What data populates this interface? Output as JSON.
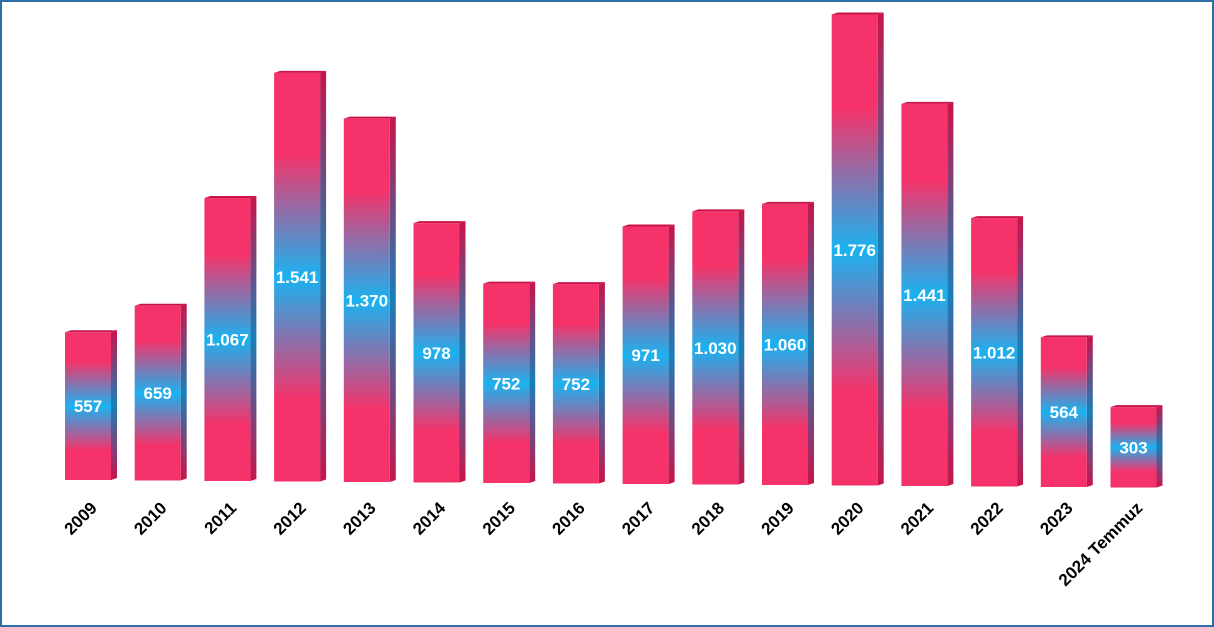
{
  "chart_data": {
    "type": "bar",
    "title": "",
    "xlabel": "",
    "ylabel": "",
    "ylim": [
      0,
      1800
    ],
    "grid": false,
    "legend": "none",
    "categories": [
      "2009",
      "2010",
      "2011",
      "2012",
      "2013",
      "2014",
      "2015",
      "2016",
      "2017",
      "2018",
      "2019",
      "2020",
      "2021",
      "2022",
      "2023",
      "2024 Temmuz"
    ],
    "values": [
      557,
      659,
      1067,
      1541,
      1370,
      978,
      752,
      752,
      971,
      1030,
      1060,
      1776,
      1441,
      1012,
      564,
      303
    ],
    "value_labels": [
      "557",
      "659",
      "1.067",
      "1.541",
      "1.370",
      "978",
      "752",
      "752",
      "971",
      "1.030",
      "1.060",
      "1.776",
      "1.441",
      "1.012",
      "564",
      "303"
    ],
    "colors": {
      "bar_outer": "#f5336a",
      "bar_middle": "#1ab2f0",
      "bar_side": "#c8144a",
      "frame": "#2f6fa8",
      "value_text": "#ffffff",
      "axis_text": "#000000"
    }
  }
}
